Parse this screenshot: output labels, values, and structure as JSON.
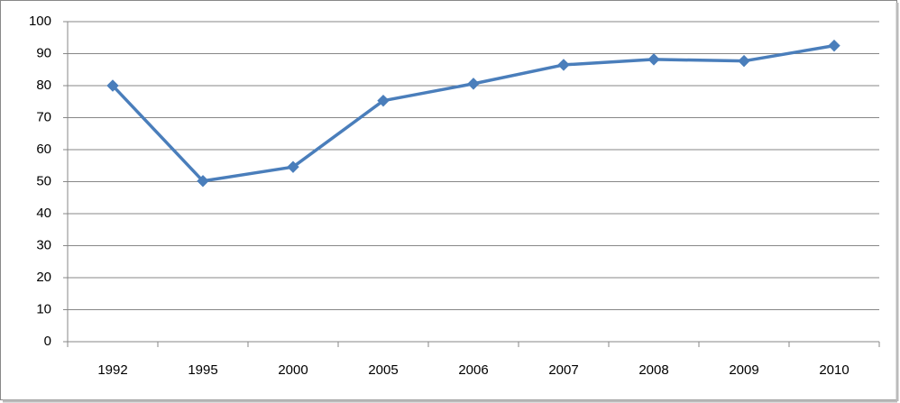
{
  "chart_data": {
    "type": "line",
    "categories": [
      "1992",
      "1995",
      "2000",
      "2005",
      "2006",
      "2007",
      "2008",
      "2009",
      "2010"
    ],
    "values": [
      80,
      50.2,
      54.6,
      75.3,
      80.6,
      86.5,
      88.2,
      87.7,
      92.5
    ],
    "color": "#4a7ebb",
    "ylim": [
      0,
      100
    ],
    "yticks": [
      0,
      10,
      20,
      30,
      40,
      50,
      60,
      70,
      80,
      90,
      100
    ],
    "grid": true
  }
}
